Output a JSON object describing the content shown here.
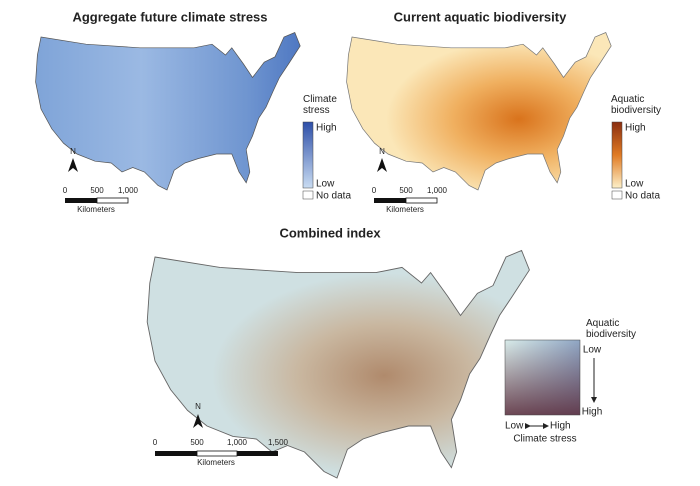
{
  "panels": [
    {
      "title": "Aggregate future climate stress",
      "legend": {
        "title": "Climate stress",
        "high": "High",
        "low": "Low",
        "no_data": "No data"
      },
      "north": "N",
      "scale": {
        "ticks": [
          "0",
          "500",
          "1,000"
        ],
        "unit": "Kilometers"
      }
    },
    {
      "title": "Current aquatic biodiversity",
      "legend": {
        "title": "Aquatic biodiversity",
        "high": "High",
        "low": "Low",
        "no_data": "No data"
      },
      "north": "N",
      "scale": {
        "ticks": [
          "0",
          "500",
          "1,000"
        ],
        "unit": "Kilometers"
      }
    },
    {
      "title": "Combined index",
      "legend": {
        "y_title": "Aquatic biodiversity",
        "y_low": "Low",
        "y_high": "High",
        "x_low": "Low",
        "x_high": "High",
        "x_title": "Climate stress"
      },
      "north": "N",
      "scale": {
        "ticks": [
          "0",
          "500",
          "1,000",
          "1,500"
        ],
        "unit": "Kilometers"
      }
    }
  ]
}
